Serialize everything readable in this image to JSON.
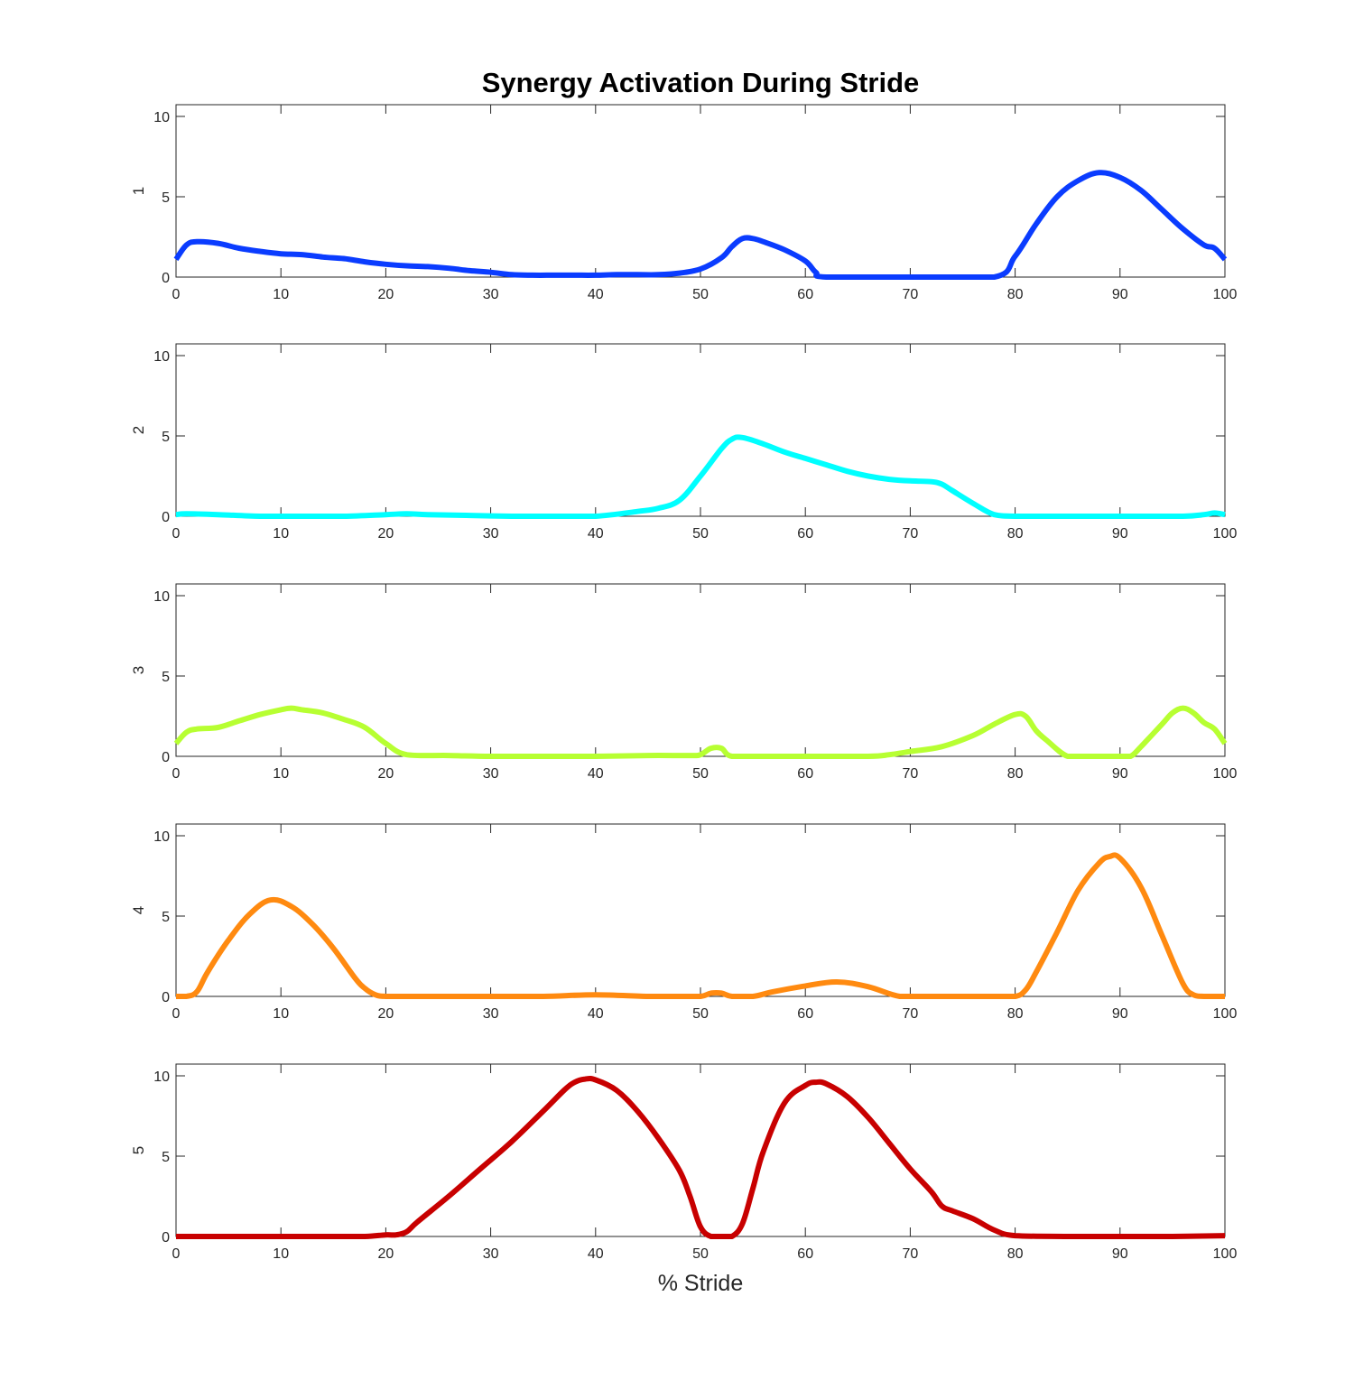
{
  "chart_data": {
    "type": "line",
    "title": "Synergy Activation During Stride",
    "xlabel": "% Stride",
    "xlim": [
      0,
      100
    ],
    "ylim": [
      0,
      10.8
    ],
    "xticks": [
      0,
      10,
      20,
      30,
      40,
      50,
      60,
      70,
      80,
      90,
      100
    ],
    "yticks": [
      0,
      5,
      10
    ],
    "grid": false,
    "subplots": [
      {
        "ylabel": "1",
        "color": "#0a3cff",
        "x": [
          0,
          1,
          2,
          4,
          6,
          8,
          10,
          12,
          14,
          16,
          18,
          20,
          22,
          24,
          26,
          28,
          30,
          32,
          34,
          36,
          38,
          40,
          42,
          44,
          46,
          48,
          50,
          52,
          53,
          54,
          55,
          56,
          58,
          60,
          61,
          62,
          70,
          78,
          80,
          82,
          84,
          86,
          88,
          90,
          92,
          94,
          96,
          98,
          99,
          100
        ],
        "y": [
          1.1,
          2.0,
          2.2,
          2.1,
          1.8,
          1.6,
          1.45,
          1.4,
          1.25,
          1.15,
          0.95,
          0.8,
          0.7,
          0.65,
          0.55,
          0.4,
          0.3,
          0.15,
          0.12,
          0.12,
          0.12,
          0.12,
          0.15,
          0.15,
          0.15,
          0.25,
          0.5,
          1.2,
          1.9,
          2.4,
          2.4,
          2.2,
          1.7,
          1.0,
          0.3,
          0.0,
          0.0,
          0.0,
          1.3,
          3.3,
          5.0,
          6.0,
          6.5,
          6.2,
          5.4,
          4.2,
          3.0,
          2.0,
          1.8,
          1.1
        ]
      },
      {
        "ylabel": "2",
        "color": "#00ffff",
        "x": [
          0,
          1,
          4,
          8,
          12,
          16,
          20,
          22,
          24,
          28,
          32,
          36,
          40,
          44,
          46,
          48,
          50,
          52,
          53,
          54,
          56,
          58,
          60,
          62,
          64,
          66,
          68,
          70,
          72,
          73,
          74,
          76,
          78,
          80,
          84,
          88,
          92,
          96,
          98,
          99,
          100
        ],
        "y": [
          0.1,
          0.15,
          0.1,
          0.0,
          0.0,
          0.0,
          0.1,
          0.15,
          0.1,
          0.05,
          0.0,
          0.0,
          0.0,
          0.3,
          0.5,
          1.0,
          2.5,
          4.2,
          4.8,
          4.9,
          4.5,
          4.0,
          3.6,
          3.2,
          2.8,
          2.5,
          2.3,
          2.2,
          2.15,
          2.0,
          1.6,
          0.8,
          0.1,
          0.0,
          0.0,
          0.0,
          0.0,
          0.0,
          0.1,
          0.2,
          0.1
        ]
      },
      {
        "ylabel": "3",
        "color": "#b7ff32",
        "x": [
          0,
          1,
          2,
          4,
          6,
          8,
          10,
          11,
          12,
          14,
          16,
          18,
          20,
          22,
          26,
          30,
          35,
          40,
          45,
          49,
          50,
          51,
          52,
          53,
          56,
          60,
          66,
          68,
          70,
          73,
          76,
          78,
          80,
          81,
          82,
          83,
          85,
          87,
          89,
          90,
          91,
          92,
          94,
          95,
          96,
          97,
          98,
          99,
          100
        ],
        "y": [
          0.8,
          1.5,
          1.7,
          1.8,
          2.2,
          2.6,
          2.9,
          3.0,
          2.9,
          2.7,
          2.3,
          1.8,
          0.8,
          0.1,
          0.05,
          0.0,
          0.0,
          0.0,
          0.05,
          0.05,
          0.1,
          0.5,
          0.5,
          0.0,
          0.0,
          0.0,
          0.0,
          0.1,
          0.3,
          0.6,
          1.3,
          2.0,
          2.6,
          2.5,
          1.6,
          1.0,
          0.0,
          0.0,
          0.0,
          0.0,
          0.0,
          0.6,
          2.0,
          2.7,
          3.0,
          2.7,
          2.1,
          1.7,
          0.8
        ]
      },
      {
        "ylabel": "4",
        "color": "#ff8a10",
        "x": [
          0,
          1,
          2,
          3,
          5,
          7,
          9,
          11,
          13,
          15,
          17,
          18,
          19,
          20,
          22,
          30,
          35,
          40,
          45,
          48,
          50,
          51,
          52,
          53,
          55,
          57,
          60,
          63,
          66,
          69,
          72,
          78,
          80,
          81,
          82,
          84,
          86,
          88,
          89,
          90,
          92,
          94,
          96,
          97,
          98,
          100
        ],
        "y": [
          0.0,
          0.0,
          0.3,
          1.5,
          3.5,
          5.1,
          6.0,
          5.6,
          4.5,
          3.0,
          1.2,
          0.5,
          0.1,
          0.0,
          0.0,
          0.0,
          0.0,
          0.1,
          0.0,
          0.0,
          0.0,
          0.2,
          0.2,
          0.0,
          0.0,
          0.3,
          0.65,
          0.9,
          0.6,
          0.0,
          0.0,
          0.0,
          0.0,
          0.4,
          1.5,
          4.0,
          6.6,
          8.3,
          8.7,
          8.6,
          6.8,
          3.8,
          0.8,
          0.1,
          0.0,
          0.0
        ]
      },
      {
        "ylabel": "5",
        "color": "#c80000",
        "x": [
          0,
          5,
          10,
          15,
          18,
          20,
          21,
          22,
          23,
          26,
          29,
          32,
          35,
          37,
          38,
          39,
          40,
          42,
          44,
          46,
          48,
          49,
          50,
          51,
          52,
          53,
          54,
          55,
          56,
          58,
          60,
          61,
          62,
          64,
          66,
          68,
          70,
          72,
          73,
          74,
          76,
          78,
          80,
          85,
          90,
          95,
          100
        ],
        "y": [
          0.0,
          0.0,
          0.0,
          0.0,
          0.0,
          0.1,
          0.1,
          0.3,
          0.9,
          2.5,
          4.2,
          5.9,
          7.8,
          9.1,
          9.6,
          9.8,
          9.75,
          9.1,
          7.8,
          6.1,
          4.1,
          2.5,
          0.6,
          0.0,
          0.0,
          0.0,
          0.8,
          3.0,
          5.3,
          8.3,
          9.4,
          9.6,
          9.5,
          8.7,
          7.4,
          5.8,
          4.2,
          2.8,
          1.9,
          1.6,
          1.1,
          0.4,
          0.05,
          0.0,
          0.0,
          0.0,
          0.05
        ]
      }
    ]
  }
}
